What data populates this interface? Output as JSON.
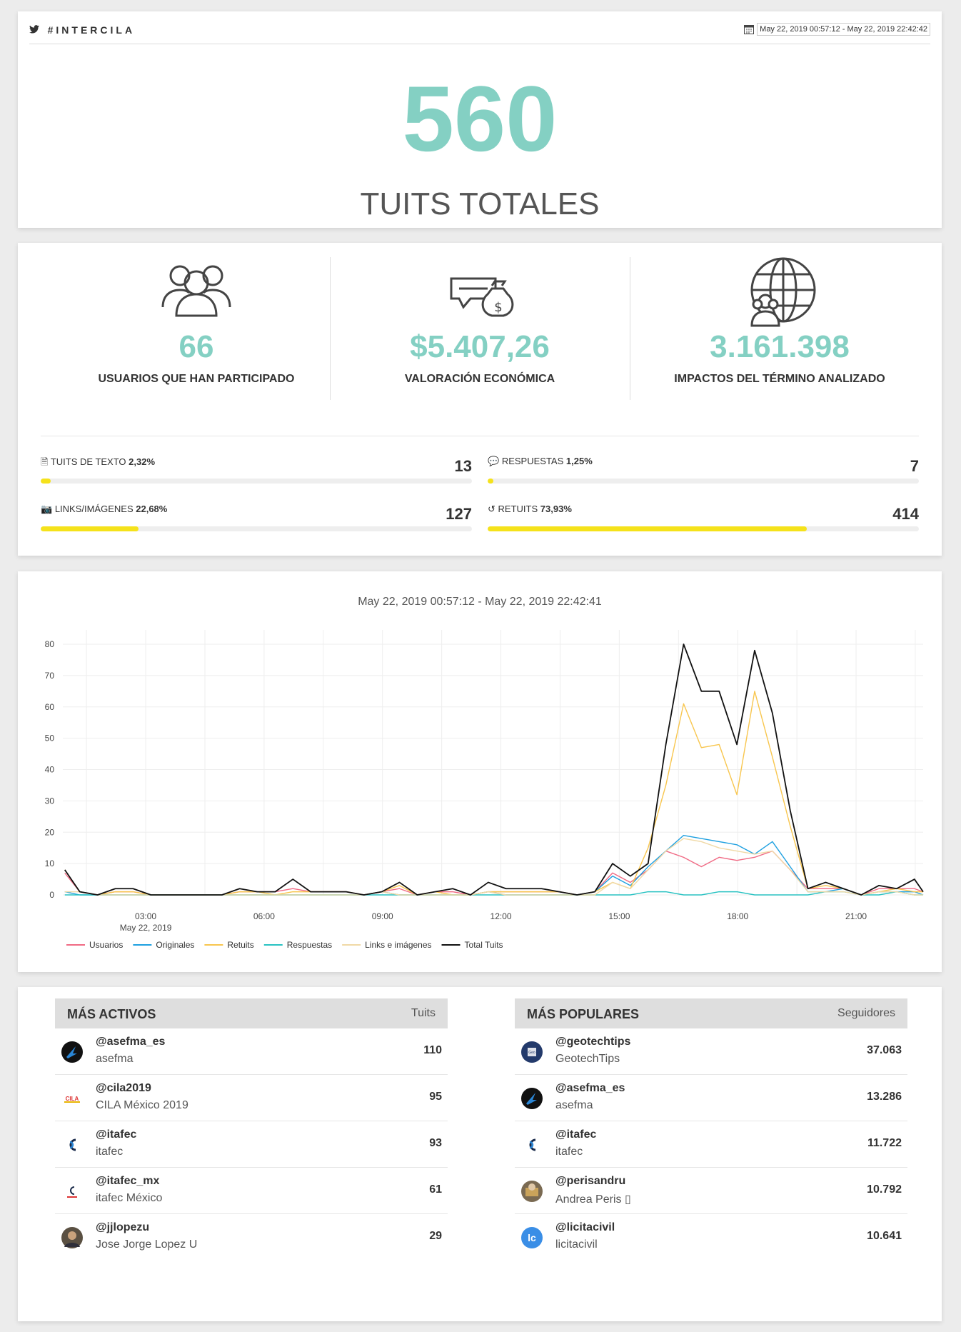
{
  "header": {
    "hashtag": "#INTERCILA",
    "date_range": "May 22, 2019 00:57:12 - May 22, 2019 22:42:42",
    "total_count": "560",
    "total_label": "TUITS TOTALES"
  },
  "kpis": [
    {
      "value": "66",
      "label": "USUARIOS QUE HAN PARTICIPADO"
    },
    {
      "value": "$5.407,26",
      "label": "VALORACIÓN ECONÓMICA"
    },
    {
      "value": "3.161.398",
      "label": "IMPACTOS DEL TÉRMINO ANALIZADO"
    }
  ],
  "breakdown": [
    {
      "label": "TUITS DE TEXTO",
      "pct": "2,32%",
      "value": "13",
      "fraction": 0.0232
    },
    {
      "label": "RESPUESTAS",
      "pct": "1,25%",
      "value": "7",
      "fraction": 0.0125
    },
    {
      "label": "LINKS/IMÁGENES",
      "pct": "22,68%",
      "value": "127",
      "fraction": 0.2268
    },
    {
      "label": "RETUITS",
      "pct": "73,93%",
      "value": "414",
      "fraction": 0.7393
    }
  ],
  "chart_data": {
    "type": "line",
    "title": "May 22, 2019 00:57:12 - May 22, 2019 22:42:41",
    "xlabel": "",
    "ylabel": "",
    "ylim": [
      0,
      80
    ],
    "yticks": [
      0,
      10,
      20,
      30,
      40,
      50,
      60,
      70,
      80
    ],
    "xlim": [
      0.9,
      22.7
    ],
    "xticks": [
      {
        "x": 3,
        "label": "03:00",
        "sub": "May 22, 2019"
      },
      {
        "x": 6,
        "label": "06:00",
        "sub": ""
      },
      {
        "x": 9,
        "label": "09:00",
        "sub": ""
      },
      {
        "x": 12,
        "label": "12:00",
        "sub": ""
      },
      {
        "x": 15,
        "label": "15:00",
        "sub": ""
      },
      {
        "x": 18,
        "label": "18:00",
        "sub": ""
      },
      {
        "x": 21,
        "label": "21:00",
        "sub": ""
      }
    ],
    "grid": true,
    "legend": "bottom-left",
    "x": [
      0.95,
      1.33,
      1.78,
      2.23,
      2.68,
      3.13,
      3.58,
      4.03,
      4.48,
      4.93,
      5.38,
      5.83,
      6.28,
      6.73,
      7.18,
      7.63,
      8.08,
      8.53,
      8.98,
      9.43,
      9.88,
      10.33,
      10.78,
      11.23,
      11.68,
      12.13,
      12.58,
      13.03,
      13.48,
      13.93,
      14.38,
      14.83,
      15.28,
      15.73,
      16.18,
      16.63,
      17.08,
      17.53,
      17.98,
      18.43,
      18.88,
      19.33,
      19.78,
      20.23,
      20.68,
      21.13,
      21.58,
      22.03,
      22.48,
      22.7
    ],
    "series": [
      {
        "name": "Usuarios",
        "color": "#f06a84",
        "values": [
          7,
          1,
          0,
          1,
          1,
          0,
          0,
          0,
          0,
          0,
          1,
          1,
          1,
          2,
          1,
          1,
          1,
          0,
          1,
          2,
          0,
          1,
          1,
          0,
          1,
          1,
          1,
          1,
          1,
          0,
          1,
          7,
          4,
          8,
          14,
          12,
          9,
          12,
          11,
          12,
          14,
          8,
          2,
          2,
          2,
          0,
          2,
          2,
          2,
          1
        ]
      },
      {
        "name": "Originales",
        "color": "#1ea0e0",
        "values": [
          1,
          0,
          0,
          0,
          0,
          0,
          0,
          0,
          0,
          0,
          0,
          0,
          0,
          0,
          0,
          0,
          0,
          0,
          1,
          0,
          0,
          0,
          0,
          0,
          1,
          0,
          0,
          0,
          0,
          0,
          1,
          6,
          3,
          9,
          14,
          19,
          18,
          17,
          16,
          13,
          17,
          9,
          1,
          1,
          2,
          0,
          1,
          1,
          1,
          0
        ]
      },
      {
        "name": "Retuits",
        "color": "#f8c64e",
        "values": [
          8,
          1,
          0,
          1,
          1,
          0,
          0,
          0,
          0,
          0,
          1,
          1,
          0,
          1,
          1,
          1,
          1,
          0,
          1,
          3,
          0,
          1,
          0,
          0,
          1,
          1,
          1,
          1,
          1,
          0,
          1,
          4,
          2,
          15,
          35,
          61,
          47,
          48,
          32,
          65,
          44,
          22,
          2,
          3,
          2,
          0,
          1,
          2,
          1,
          1
        ]
      },
      {
        "name": "Respuestas",
        "color": "#28c2c2",
        "values": [
          0,
          0,
          0,
          0,
          0,
          0,
          0,
          0,
          0,
          0,
          0,
          0,
          0,
          0,
          0,
          0,
          0,
          0,
          0,
          0,
          0,
          0,
          0,
          0,
          0,
          0,
          0,
          0,
          0,
          0,
          0,
          0,
          0,
          1,
          1,
          0,
          0,
          1,
          1,
          0,
          0,
          0,
          0,
          1,
          1,
          0,
          0,
          1,
          0,
          0
        ]
      },
      {
        "name": "Links e imágenes",
        "color": "#f0d9a6",
        "values": [
          1,
          1,
          0,
          0,
          0,
          0,
          0,
          0,
          0,
          0,
          0,
          0,
          0,
          0,
          0,
          0,
          0,
          0,
          1,
          0,
          0,
          0,
          0,
          0,
          1,
          0,
          0,
          0,
          0,
          0,
          0,
          4,
          2,
          8,
          14,
          18,
          17,
          15,
          14,
          13,
          14,
          8,
          1,
          1,
          1,
          0,
          1,
          1,
          0,
          0
        ]
      },
      {
        "name": "Total Tuits",
        "color": "#111111",
        "values": [
          8,
          1,
          0,
          2,
          2,
          0,
          0,
          0,
          0,
          0,
          2,
          1,
          1,
          5,
          1,
          1,
          1,
          0,
          1,
          4,
          0,
          1,
          2,
          0,
          4,
          2,
          2,
          2,
          1,
          0,
          1,
          10,
          6,
          10,
          48,
          80,
          65,
          65,
          48,
          78,
          58,
          27,
          2,
          4,
          2,
          0,
          3,
          2,
          5,
          1
        ]
      }
    ]
  },
  "lists": {
    "active": {
      "title": "MÁS ACTIVOS",
      "col": "Tuits",
      "rows": [
        {
          "handle": "@asefma_es",
          "name": "asefma",
          "count": "110",
          "avatar": "asefma"
        },
        {
          "handle": "@cila2019",
          "name": "CILA México 2019",
          "count": "95",
          "avatar": "cila"
        },
        {
          "handle": "@itafec",
          "name": "itafec",
          "count": "93",
          "avatar": "itafec"
        },
        {
          "handle": "@itafec_mx",
          "name": "itafec México",
          "count": "61",
          "avatar": "itafecmx"
        },
        {
          "handle": "@jjlopezu",
          "name": "Jose Jorge Lopez U",
          "count": "29",
          "avatar": "photo"
        }
      ]
    },
    "popular": {
      "title": "MÁS POPULARES",
      "col": "Seguidores",
      "rows": [
        {
          "handle": "@geotechtips",
          "name": "GeotechTips",
          "count": "37.063",
          "avatar": "geotech"
        },
        {
          "handle": "@asefma_es",
          "name": "asefma",
          "count": "13.286",
          "avatar": "asefma"
        },
        {
          "handle": "@itafec",
          "name": "itafec",
          "count": "11.722",
          "avatar": "itafec"
        },
        {
          "handle": "@perisandru",
          "name": "Andrea Peris ▯",
          "count": "10.792",
          "avatar": "photo2"
        },
        {
          "handle": "@licitacivil",
          "name": "licitacivil",
          "count": "10.641",
          "avatar": "licita"
        }
      ]
    }
  }
}
